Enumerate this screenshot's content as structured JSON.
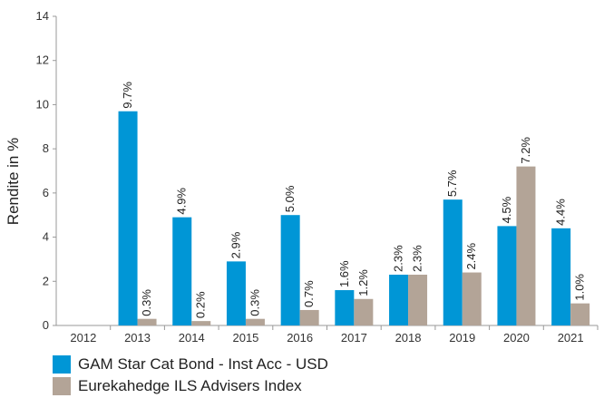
{
  "chart_data": {
    "type": "bar",
    "ylabel": "Rendite in %",
    "ylim": [
      0,
      14
    ],
    "yticks": [
      0,
      2,
      4,
      6,
      8,
      10,
      12,
      14
    ],
    "categories": [
      "2012",
      "2013",
      "2014",
      "2015",
      "2016",
      "2017",
      "2018",
      "2019",
      "2020",
      "2021"
    ],
    "series": [
      {
        "name": "GAM Star Cat Bond - Inst Acc - USD",
        "color": "#0096d6",
        "values": [
          null,
          9.7,
          4.9,
          2.9,
          5.0,
          1.6,
          2.3,
          5.7,
          4.5,
          4.4
        ],
        "labels": [
          "",
          "9.7%",
          "4.9%",
          "2.9%",
          "5.0%",
          "1.6%",
          "2.3%",
          "5.7%",
          "4.5%",
          "4.4%"
        ]
      },
      {
        "name": "Eurekahedge ILS Advisers Index",
        "color": "#b3a497",
        "values": [
          null,
          0.3,
          0.2,
          0.3,
          0.7,
          1.2,
          2.3,
          2.4,
          7.2,
          1.0
        ],
        "labels": [
          "",
          "0.3%",
          "0.2%",
          "0.3%",
          "0.7%",
          "1.2%",
          "2.3%",
          "2.4%",
          "7.2%",
          "1.0%"
        ]
      }
    ],
    "grid": false,
    "legend": "bottom-left"
  }
}
